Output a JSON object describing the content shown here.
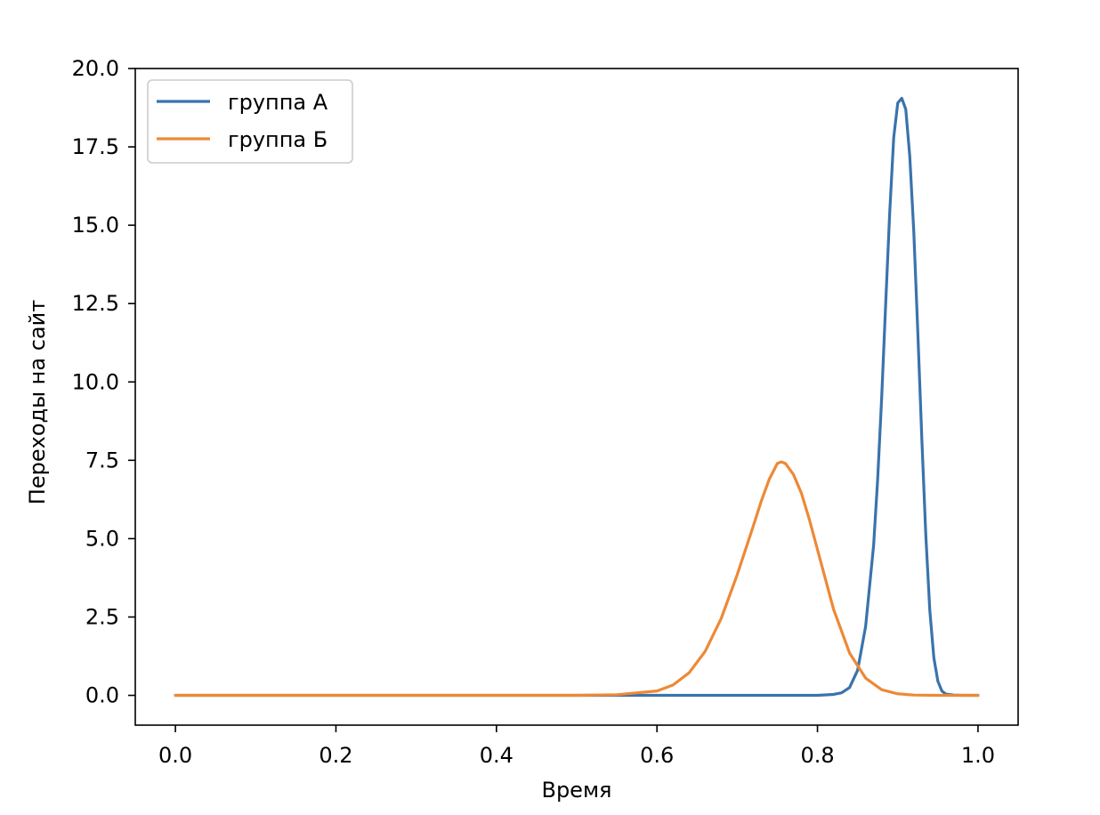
{
  "chart_data": {
    "type": "line",
    "title": "",
    "xlabel": "Время",
    "ylabel": "Переходы на сайт",
    "xlim": [
      -0.05,
      1.05
    ],
    "ylim": [
      -0.95,
      20.0
    ],
    "x_ticks": [
      0.0,
      0.2,
      0.4,
      0.6,
      0.8,
      1.0
    ],
    "x_tick_labels": [
      "0.0",
      "0.2",
      "0.4",
      "0.6",
      "0.8",
      "1.0"
    ],
    "y_ticks": [
      0.0,
      2.5,
      5.0,
      7.5,
      10.0,
      12.5,
      15.0,
      17.5,
      20.0
    ],
    "y_tick_labels": [
      "0.0",
      "2.5",
      "5.0",
      "7.5",
      "10.0",
      "12.5",
      "15.0",
      "17.5",
      "20.0"
    ],
    "grid": false,
    "legend_position": "top-left",
    "series": [
      {
        "name": "группа А",
        "color": "#3a73ac",
        "x": [
          0.0,
          0.8,
          0.82,
          0.83,
          0.84,
          0.85,
          0.86,
          0.87,
          0.875,
          0.88,
          0.885,
          0.89,
          0.895,
          0.9,
          0.905,
          0.91,
          0.915,
          0.92,
          0.925,
          0.93,
          0.935,
          0.94,
          0.945,
          0.95,
          0.955,
          0.96,
          0.97,
          0.98,
          1.0
        ],
        "y": [
          0.0,
          0.0,
          0.03,
          0.08,
          0.25,
          0.8,
          2.2,
          4.8,
          6.9,
          9.5,
          12.5,
          15.4,
          17.8,
          18.9,
          19.05,
          18.7,
          17.2,
          14.8,
          11.6,
          8.2,
          5.1,
          2.7,
          1.2,
          0.45,
          0.14,
          0.04,
          0.01,
          0.0,
          0.0
        ]
      },
      {
        "name": "группа Б",
        "color": "#ed8936",
        "x": [
          0.0,
          0.5,
          0.55,
          0.6,
          0.62,
          0.64,
          0.66,
          0.68,
          0.7,
          0.72,
          0.73,
          0.74,
          0.75,
          0.755,
          0.76,
          0.77,
          0.78,
          0.79,
          0.8,
          0.82,
          0.84,
          0.86,
          0.88,
          0.9,
          0.92,
          0.95,
          1.0
        ],
        "y": [
          0.0,
          0.0,
          0.02,
          0.14,
          0.33,
          0.72,
          1.4,
          2.45,
          3.85,
          5.4,
          6.2,
          6.9,
          7.4,
          7.45,
          7.4,
          7.05,
          6.45,
          5.6,
          4.65,
          2.75,
          1.35,
          0.55,
          0.18,
          0.05,
          0.01,
          0.0,
          0.0
        ]
      }
    ]
  }
}
